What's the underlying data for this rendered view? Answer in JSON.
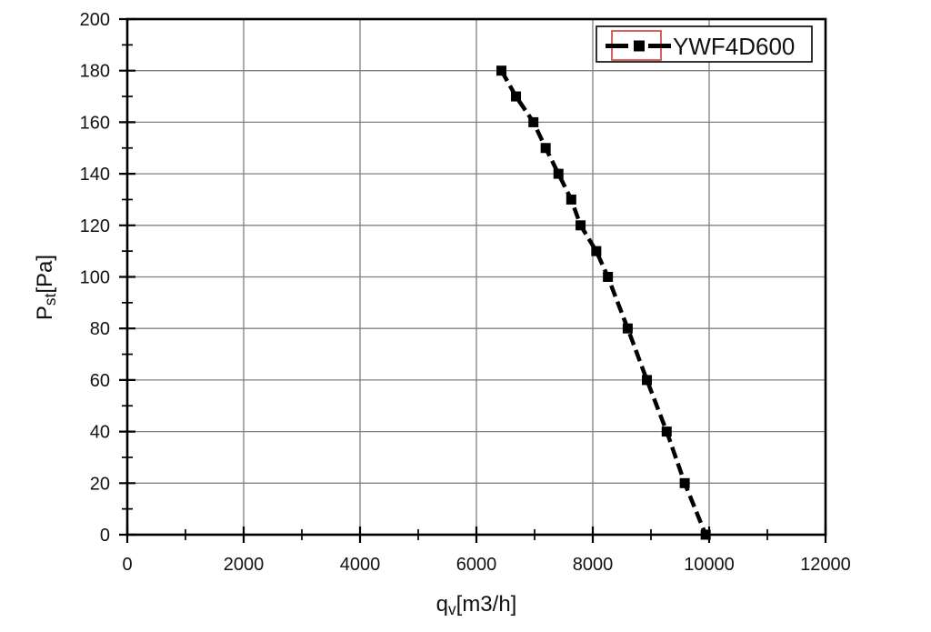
{
  "chart_data": {
    "type": "line",
    "title": "",
    "xlabel": {
      "base": "q",
      "sub": "v",
      "rest": "[m3/h]"
    },
    "ylabel": {
      "base": "P",
      "sub": "st",
      "rest": "[Pa]"
    },
    "xlim": [
      0,
      12000
    ],
    "ylim": [
      0,
      200
    ],
    "x_major_ticks": [
      0,
      2000,
      4000,
      6000,
      8000,
      10000,
      12000
    ],
    "x_minor_ticks": [
      1000,
      3000,
      5000,
      7000,
      9000,
      11000
    ],
    "y_major_ticks": [
      0,
      20,
      40,
      60,
      80,
      100,
      120,
      140,
      160,
      180,
      200
    ],
    "y_minor_ticks": [
      10,
      30,
      50,
      70,
      90,
      110,
      130,
      150,
      170,
      190
    ],
    "grid": {
      "on": true,
      "x_lines": [
        2000,
        4000,
        6000,
        8000,
        10000
      ],
      "y_lines": [
        20,
        40,
        60,
        80,
        100,
        120,
        140,
        160,
        180
      ],
      "color": "#808080"
    },
    "legend": {
      "position": "top-right",
      "label": "YWF4D600",
      "highlight_color": "#cc3b3b"
    },
    "series": [
      {
        "name": "YWF4D600",
        "color": "#000000",
        "line_style": "dashed",
        "marker": "square",
        "x": [
          6430,
          6680,
          6980,
          7190,
          7410,
          7630,
          7790,
          8060,
          8260,
          8600,
          8930,
          9270,
          9580,
          9940
        ],
        "y": [
          180,
          170,
          160,
          150,
          140,
          130,
          120,
          110,
          100,
          80,
          60,
          40,
          20,
          0
        ]
      }
    ]
  }
}
